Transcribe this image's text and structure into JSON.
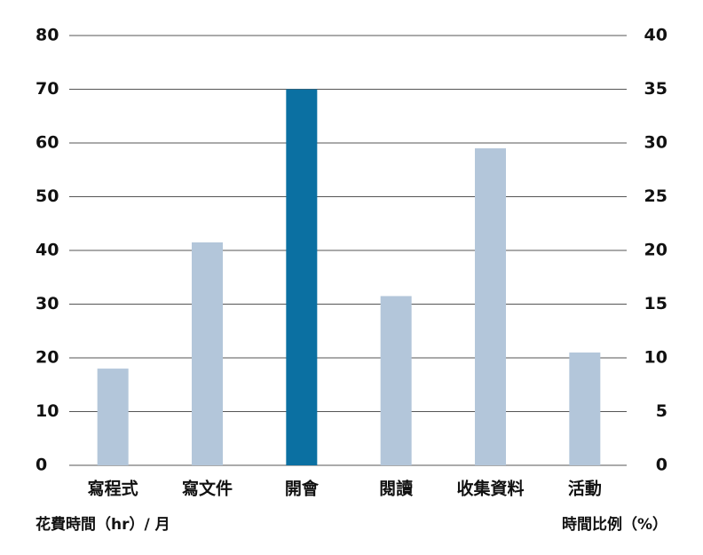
{
  "chart_data": {
    "type": "bar",
    "categories": [
      "寫程式",
      "寫文件",
      "開會",
      "閱讀",
      "收集資料",
      "活動"
    ],
    "values": [
      18,
      41.5,
      70,
      31.5,
      59,
      21
    ],
    "colors": [
      "#b3c6da",
      "#b3c6da",
      "#0b70a2",
      "#b3c6da",
      "#b3c6da",
      "#b3c6da"
    ],
    "ylim": [
      0,
      80
    ],
    "yticks": [
      0,
      10,
      20,
      30,
      40,
      50,
      60,
      70,
      80
    ],
    "y2lim": [
      0,
      40
    ],
    "y2ticks": [
      0,
      5,
      10,
      15,
      20,
      25,
      30,
      35,
      40
    ],
    "ylabel": "花費時間（hr）/ 月",
    "y2label": "時間比例（%）",
    "grid": true
  }
}
